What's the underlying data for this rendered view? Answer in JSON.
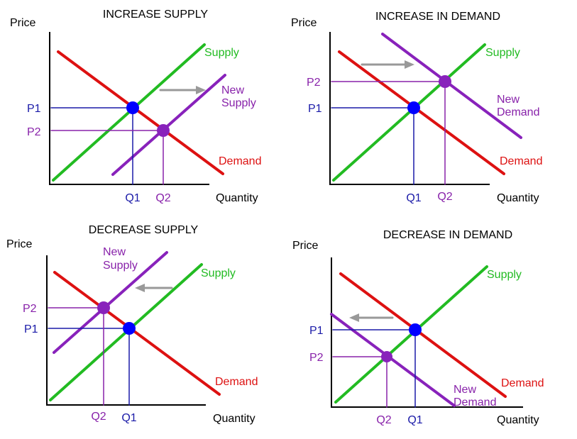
{
  "colors": {
    "supply": "#22bb22",
    "new": "#8822bb",
    "demand": "#dd1111",
    "original_point": "#0000ff",
    "original_label": "#1a1aa8",
    "new_label": "#8822aa",
    "arrow": "#999999",
    "axis": "#000000"
  },
  "panels": [
    {
      "title": "INCREASE SUPPLY",
      "ylabel": "Price",
      "xlabel": "Quantity",
      "supply_label": "Supply",
      "demand_label": "Demand",
      "new_curve_label_line1": "New",
      "new_curve_label_line2": "Supply",
      "p1": "P1",
      "p2": "P2",
      "q1": "Q1",
      "q2": "Q2"
    },
    {
      "title": "INCREASE IN DEMAND",
      "ylabel": "Price",
      "xlabel": "Quantity",
      "supply_label": "Supply",
      "demand_label": "Demand",
      "new_curve_label_line1": "New",
      "new_curve_label_line2": "Demand",
      "p1": "P1",
      "p2": "P2",
      "q1": "Q1",
      "q2": "Q2"
    },
    {
      "title": "DECREASE SUPPLY",
      "ylabel": "Price",
      "xlabel": "Quantity",
      "supply_label": "Supply",
      "demand_label": "Demand",
      "new_curve_label_line1": "New",
      "new_curve_label_line2": "Supply",
      "p1": "P1",
      "p2": "P2",
      "q1": "Q1",
      "q2": "Q2"
    },
    {
      "title": "DECREASE IN DEMAND",
      "ylabel": "Price",
      "xlabel": "Quantity",
      "supply_label": "Supply",
      "demand_label": "Demand",
      "new_curve_label_line1": "New",
      "new_curve_label_line2": "Demand",
      "p1": "P1",
      "p2": "P2",
      "q1": "Q1",
      "q2": "Q2"
    }
  ]
}
